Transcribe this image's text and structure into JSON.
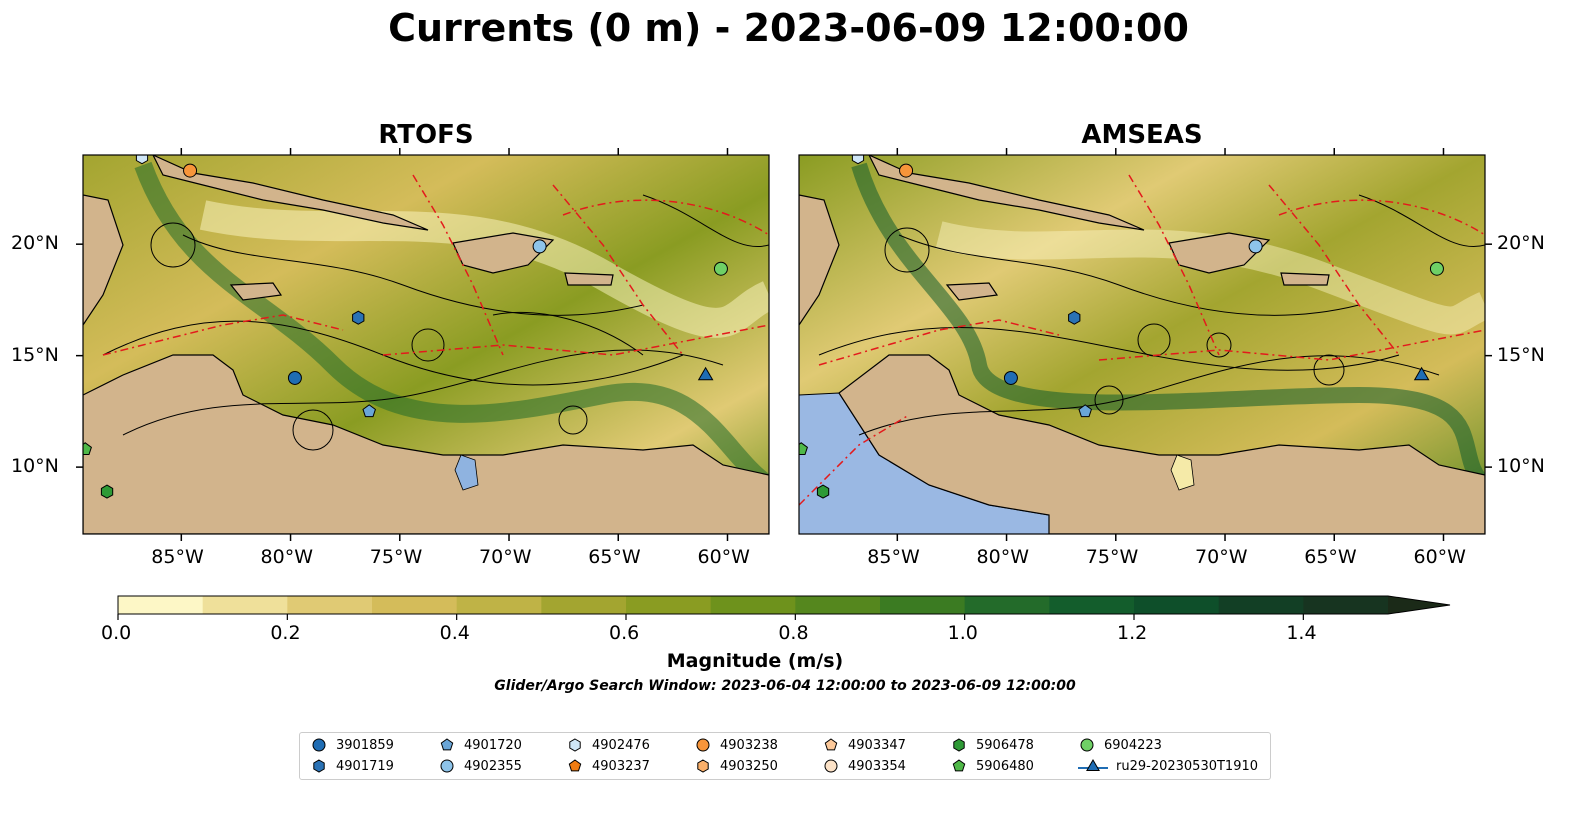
{
  "title": "Currents (0 m) - 2023-06-09 12:00:00",
  "panels": [
    {
      "title": "RTOFS"
    },
    {
      "title": "AMSEAS"
    }
  ],
  "axes": {
    "x_ticks": [
      "85°W",
      "80°W",
      "75°W",
      "70°W",
      "65°W",
      "60°W"
    ],
    "y_ticks": [
      "20°N",
      "15°N",
      "10°N"
    ]
  },
  "colorbar": {
    "label": "Magnitude (m/s)",
    "ticks": [
      "0.0",
      "0.2",
      "0.4",
      "0.6",
      "0.8",
      "1.0",
      "1.2",
      "1.4"
    ],
    "range": [
      0,
      1.5
    ],
    "extend": "max",
    "colors": [
      "#fdf7c6",
      "#efe09a",
      "#e0ca74",
      "#d4bc5a",
      "#bfb346",
      "#a3a530",
      "#8a9c22",
      "#6e921c",
      "#55871e",
      "#3b7b22",
      "#236b2a",
      "#135d2c",
      "#0e4f2a",
      "#123f25",
      "#173420",
      "#1b2a18"
    ]
  },
  "search_window": "Glider/Argo Search Window: 2023-06-04 12:00:00 to 2023-06-09 12:00:00",
  "legend": {
    "items": [
      {
        "label": "3901859",
        "marker": "circle",
        "color": "#1f6db4"
      },
      {
        "label": "4901719",
        "marker": "hexagon",
        "color": "#2a72b5"
      },
      {
        "label": "4901720",
        "marker": "pentagon",
        "color": "#6aa6d8"
      },
      {
        "label": "4902355",
        "marker": "circle",
        "color": "#8ec4ea"
      },
      {
        "label": "4902476",
        "marker": "hexagon",
        "color": "#cfe6f7"
      },
      {
        "label": "4903237",
        "marker": "pentagon",
        "color": "#f07c12"
      },
      {
        "label": "4903238",
        "marker": "circle",
        "color": "#f7953a"
      },
      {
        "label": "4903250",
        "marker": "hexagon",
        "color": "#fbb06a"
      },
      {
        "label": "4903347",
        "marker": "pentagon",
        "color": "#fdc99a"
      },
      {
        "label": "4903354",
        "marker": "circle",
        "color": "#fde3c8"
      },
      {
        "label": "5906478",
        "marker": "hexagon",
        "color": "#2e9a36"
      },
      {
        "label": "5906480",
        "marker": "pentagon",
        "color": "#4fb848"
      },
      {
        "label": "6904223",
        "marker": "circle",
        "color": "#6fd066"
      },
      {
        "label": "ru29-20230530T1910",
        "marker": "triangle",
        "color": "#1f6db4"
      }
    ]
  },
  "map_data": {
    "lon_range": [
      -89.5,
      -58.1
    ],
    "lat_range": [
      7.0,
      24.0
    ],
    "observations": [
      {
        "label": "3901859",
        "lon": -79.8,
        "lat": 14.0
      },
      {
        "label": "4901719",
        "lon": -76.9,
        "lat": 16.7
      },
      {
        "label": "4901720",
        "lon": -76.4,
        "lat": 12.5
      },
      {
        "label": "4902355",
        "lon": -68.6,
        "lat": 19.9
      },
      {
        "label": "4902476",
        "lon": -86.8,
        "lat": 23.9
      },
      {
        "label": "4903238",
        "lon": -84.6,
        "lat": 23.3
      },
      {
        "label": "5906478",
        "lon": -88.4,
        "lat": 8.9
      },
      {
        "label": "5906480",
        "lon": -89.4,
        "lat": 10.8
      },
      {
        "label": "6904223",
        "lon": -60.3,
        "lat": 18.9
      },
      {
        "label": "ru29-20230530T1910",
        "lon": -61.0,
        "lat": 14.1
      }
    ]
  }
}
